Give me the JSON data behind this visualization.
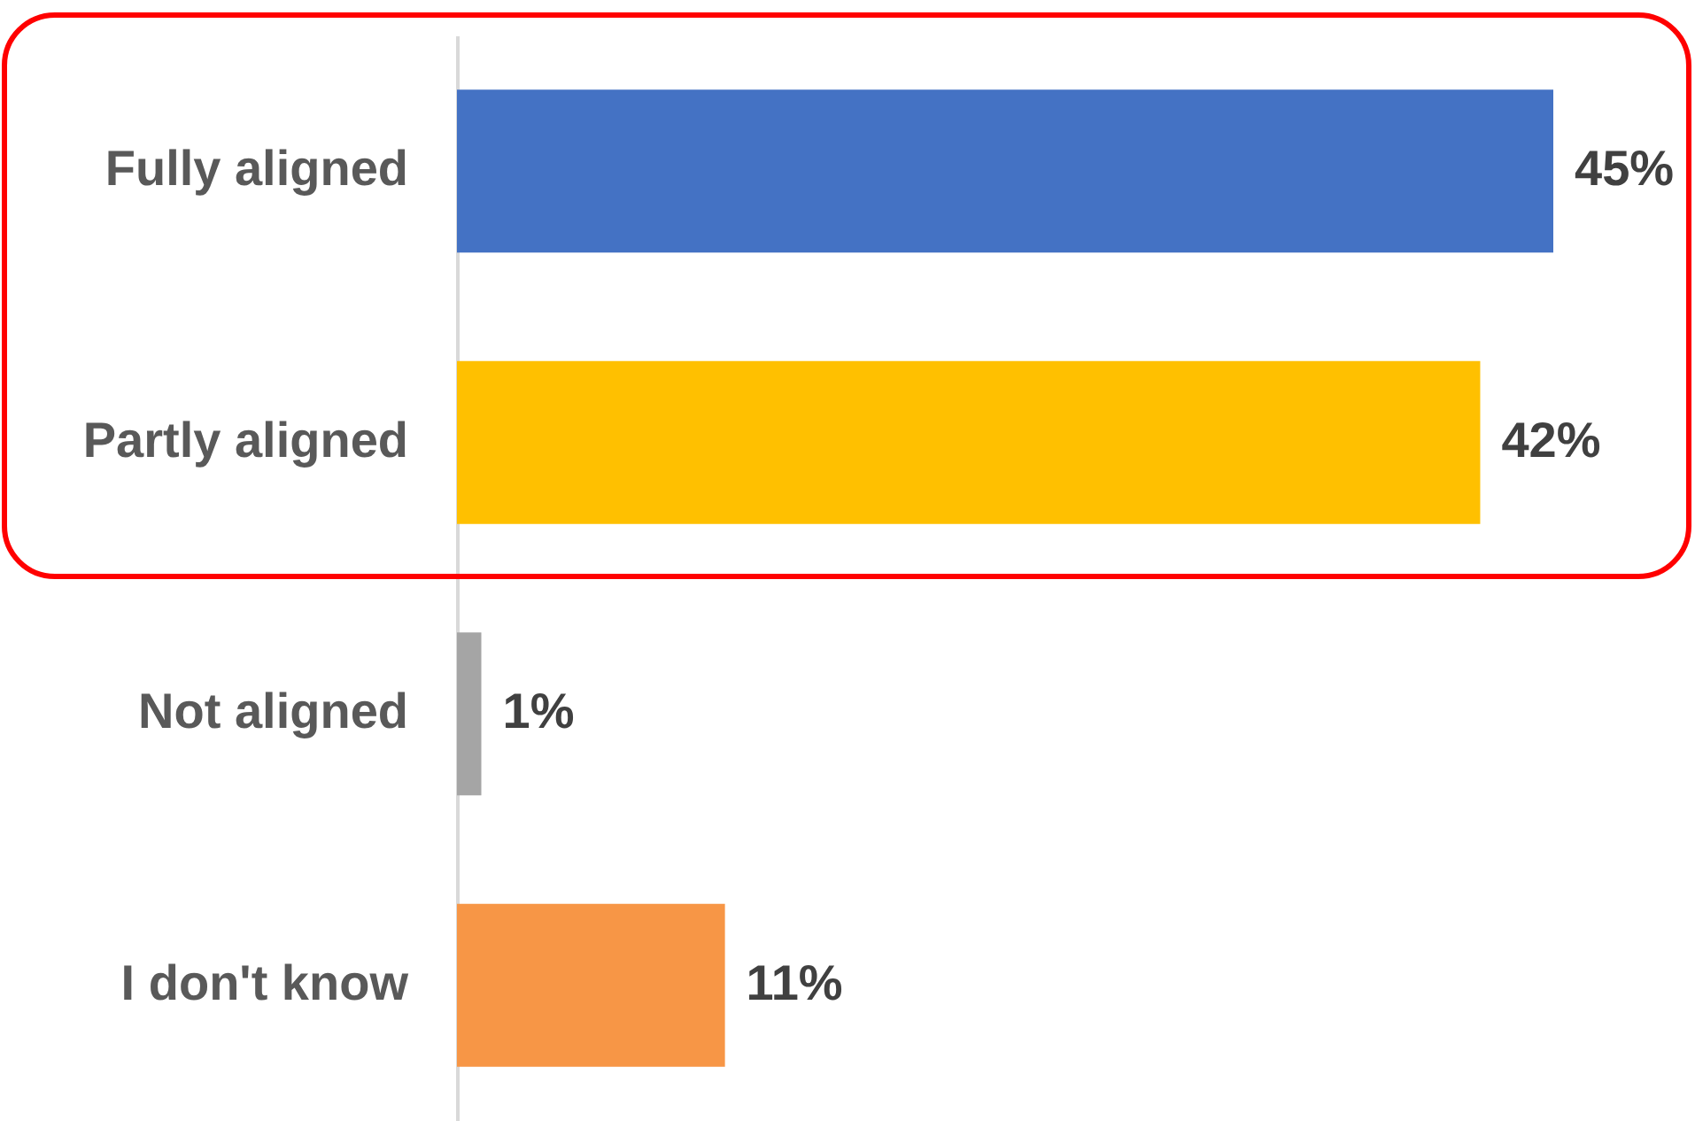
{
  "chart_data": {
    "type": "bar",
    "orientation": "horizontal",
    "categories": [
      "Fully aligned",
      "Partly aligned",
      "Not aligned",
      "I don't know"
    ],
    "values": [
      45,
      42,
      1,
      11
    ],
    "value_labels": [
      "45%",
      "42%",
      "1%",
      "11%"
    ],
    "colors": [
      "#4472c4",
      "#ffc000",
      "#a5a5a5",
      "#f79646"
    ]
  }
}
